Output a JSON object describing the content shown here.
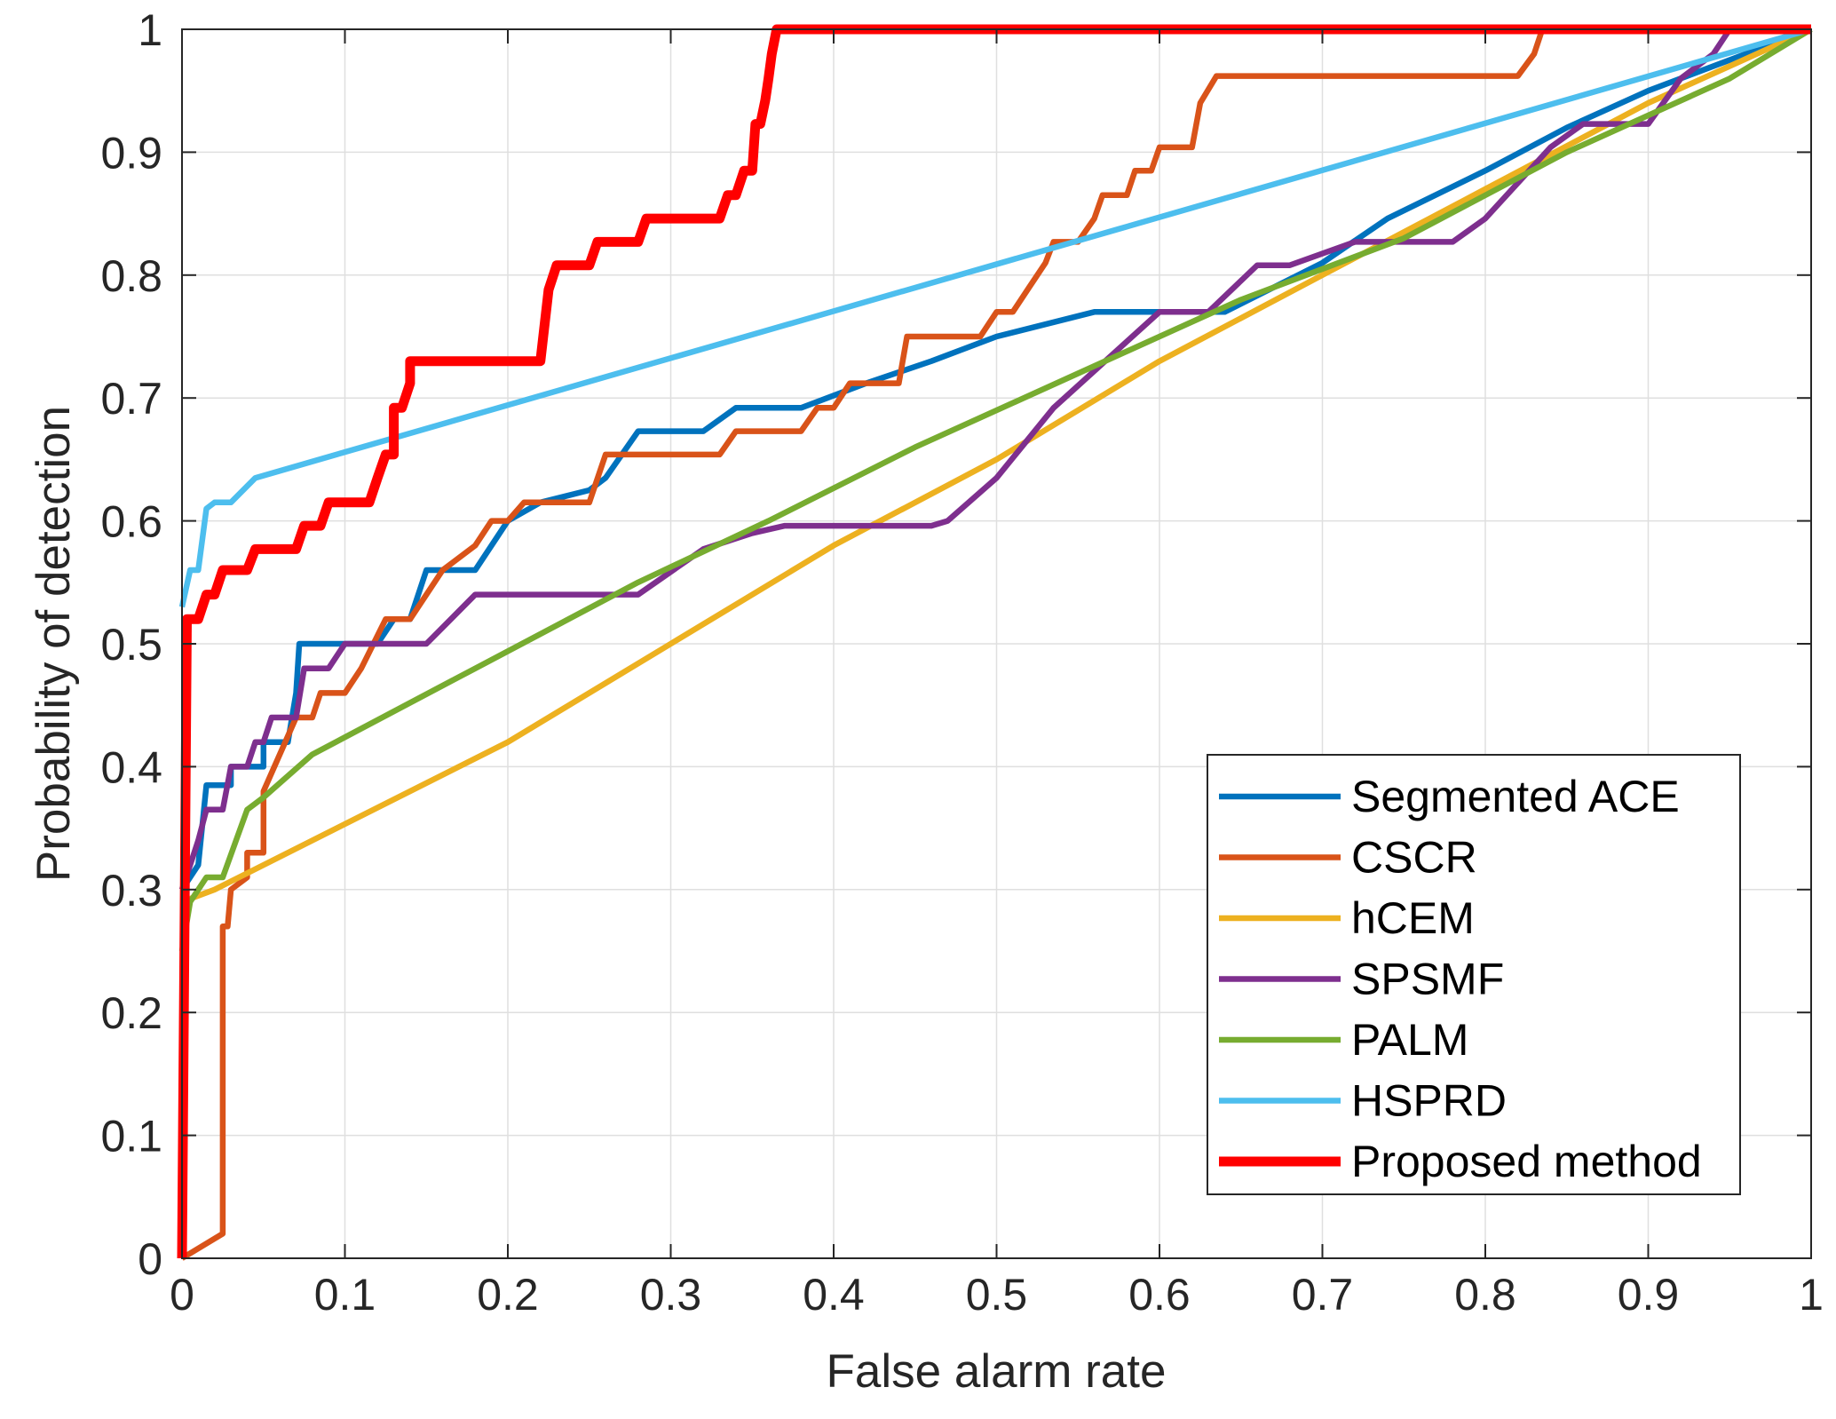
{
  "chart_data": {
    "type": "line",
    "title": "",
    "xlabel": "False alarm rate",
    "ylabel": "Probability of detection",
    "xlim": [
      0,
      1
    ],
    "ylim": [
      0,
      1
    ],
    "xticks": [
      0,
      0.1,
      0.2,
      0.3,
      0.4,
      0.5,
      0.6,
      0.7,
      0.8,
      0.9,
      1
    ],
    "yticks": [
      0,
      0.1,
      0.2,
      0.3,
      0.4,
      0.5,
      0.6,
      0.7,
      0.8,
      0.9,
      1
    ],
    "xtick_labels": [
      "0",
      "0.1",
      "0.2",
      "0.3",
      "0.4",
      "0.5",
      "0.6",
      "0.7",
      "0.8",
      "0.9",
      "1"
    ],
    "ytick_labels": [
      "0",
      "0.1",
      "0.2",
      "0.3",
      "0.4",
      "0.5",
      "0.6",
      "0.7",
      "0.8",
      "0.9",
      "1"
    ],
    "grid": true,
    "legend_position": "bottom-right",
    "series": [
      {
        "name": "Segmented ACE",
        "color": "#0072BD",
        "points": [
          [
            0,
            0.3
          ],
          [
            0.01,
            0.32
          ],
          [
            0.015,
            0.385
          ],
          [
            0.03,
            0.385
          ],
          [
            0.03,
            0.4
          ],
          [
            0.05,
            0.4
          ],
          [
            0.05,
            0.42
          ],
          [
            0.065,
            0.42
          ],
          [
            0.07,
            0.46
          ],
          [
            0.072,
            0.5
          ],
          [
            0.12,
            0.5
          ],
          [
            0.13,
            0.52
          ],
          [
            0.14,
            0.52
          ],
          [
            0.15,
            0.56
          ],
          [
            0.18,
            0.56
          ],
          [
            0.2,
            0.6
          ],
          [
            0.22,
            0.615
          ],
          [
            0.25,
            0.625
          ],
          [
            0.26,
            0.635
          ],
          [
            0.28,
            0.673
          ],
          [
            0.32,
            0.673
          ],
          [
            0.34,
            0.692
          ],
          [
            0.38,
            0.692
          ],
          [
            0.42,
            0.712
          ],
          [
            0.46,
            0.73
          ],
          [
            0.5,
            0.75
          ],
          [
            0.56,
            0.77
          ],
          [
            0.6,
            0.77
          ],
          [
            0.64,
            0.77
          ],
          [
            0.7,
            0.81
          ],
          [
            0.74,
            0.846
          ],
          [
            0.8,
            0.885
          ],
          [
            0.85,
            0.92
          ],
          [
            0.9,
            0.95
          ],
          [
            1,
            1
          ]
        ]
      },
      {
        "name": "CSCR",
        "color": "#D95319",
        "points": [
          [
            0,
            0
          ],
          [
            0.025,
            0.02
          ],
          [
            0.025,
            0.27
          ],
          [
            0.028,
            0.27
          ],
          [
            0.03,
            0.3
          ],
          [
            0.04,
            0.31
          ],
          [
            0.04,
            0.33
          ],
          [
            0.05,
            0.33
          ],
          [
            0.05,
            0.38
          ],
          [
            0.07,
            0.44
          ],
          [
            0.08,
            0.44
          ],
          [
            0.085,
            0.46
          ],
          [
            0.1,
            0.46
          ],
          [
            0.11,
            0.48
          ],
          [
            0.125,
            0.52
          ],
          [
            0.14,
            0.52
          ],
          [
            0.16,
            0.56
          ],
          [
            0.18,
            0.58
          ],
          [
            0.19,
            0.6
          ],
          [
            0.2,
            0.6
          ],
          [
            0.21,
            0.615
          ],
          [
            0.25,
            0.615
          ],
          [
            0.26,
            0.654
          ],
          [
            0.33,
            0.654
          ],
          [
            0.34,
            0.673
          ],
          [
            0.38,
            0.673
          ],
          [
            0.39,
            0.692
          ],
          [
            0.4,
            0.692
          ],
          [
            0.41,
            0.712
          ],
          [
            0.44,
            0.712
          ],
          [
            0.445,
            0.75
          ],
          [
            0.49,
            0.75
          ],
          [
            0.5,
            0.77
          ],
          [
            0.51,
            0.77
          ],
          [
            0.52,
            0.79
          ],
          [
            0.53,
            0.81
          ],
          [
            0.535,
            0.827
          ],
          [
            0.55,
            0.827
          ],
          [
            0.56,
            0.846
          ],
          [
            0.565,
            0.865
          ],
          [
            0.58,
            0.865
          ],
          [
            0.585,
            0.885
          ],
          [
            0.595,
            0.885
          ],
          [
            0.6,
            0.904
          ],
          [
            0.62,
            0.904
          ],
          [
            0.625,
            0.94
          ],
          [
            0.635,
            0.962
          ],
          [
            0.82,
            0.962
          ],
          [
            0.83,
            0.98
          ],
          [
            0.835,
            1
          ],
          [
            1,
            1
          ]
        ]
      },
      {
        "name": "hCEM",
        "color": "#EDB120",
        "points": [
          [
            0,
            0.29
          ],
          [
            0.02,
            0.3
          ],
          [
            0.05,
            0.32
          ],
          [
            0.2,
            0.42
          ],
          [
            0.3,
            0.5
          ],
          [
            0.4,
            0.58
          ],
          [
            0.5,
            0.65
          ],
          [
            0.6,
            0.73
          ],
          [
            0.7,
            0.8
          ],
          [
            0.8,
            0.87
          ],
          [
            0.9,
            0.94
          ],
          [
            1,
            1
          ]
        ]
      },
      {
        "name": "SPSMF",
        "color": "#7E2F8E",
        "points": [
          [
            0,
            0.3
          ],
          [
            0.005,
            0.32
          ],
          [
            0.01,
            0.34
          ],
          [
            0.015,
            0.365
          ],
          [
            0.025,
            0.365
          ],
          [
            0.03,
            0.4
          ],
          [
            0.04,
            0.4
          ],
          [
            0.045,
            0.42
          ],
          [
            0.05,
            0.42
          ],
          [
            0.055,
            0.44
          ],
          [
            0.07,
            0.44
          ],
          [
            0.075,
            0.48
          ],
          [
            0.09,
            0.48
          ],
          [
            0.1,
            0.5
          ],
          [
            0.15,
            0.5
          ],
          [
            0.18,
            0.54
          ],
          [
            0.28,
            0.54
          ],
          [
            0.32,
            0.577
          ],
          [
            0.35,
            0.59
          ],
          [
            0.37,
            0.596
          ],
          [
            0.46,
            0.596
          ],
          [
            0.47,
            0.6
          ],
          [
            0.5,
            0.635
          ],
          [
            0.535,
            0.692
          ],
          [
            0.6,
            0.77
          ],
          [
            0.63,
            0.77
          ],
          [
            0.66,
            0.808
          ],
          [
            0.68,
            0.808
          ],
          [
            0.72,
            0.827
          ],
          [
            0.78,
            0.827
          ],
          [
            0.8,
            0.846
          ],
          [
            0.84,
            0.904
          ],
          [
            0.86,
            0.923
          ],
          [
            0.88,
            0.923
          ],
          [
            0.9,
            0.923
          ],
          [
            0.92,
            0.96
          ],
          [
            0.94,
            0.98
          ],
          [
            0.95,
            1
          ],
          [
            1,
            1
          ]
        ]
      },
      {
        "name": "PALM",
        "color": "#77AC30",
        "points": [
          [
            0,
            0.25
          ],
          [
            0.005,
            0.29
          ],
          [
            0.015,
            0.31
          ],
          [
            0.025,
            0.31
          ],
          [
            0.04,
            0.365
          ],
          [
            0.05,
            0.375
          ],
          [
            0.08,
            0.41
          ],
          [
            0.18,
            0.48
          ],
          [
            0.28,
            0.55
          ],
          [
            0.36,
            0.6
          ],
          [
            0.45,
            0.66
          ],
          [
            0.55,
            0.72
          ],
          [
            0.65,
            0.78
          ],
          [
            0.75,
            0.83
          ],
          [
            0.85,
            0.9
          ],
          [
            0.95,
            0.96
          ],
          [
            1,
            1
          ]
        ]
      },
      {
        "name": "HSPRD",
        "color": "#4DBEEE",
        "points": [
          [
            0,
            0.53
          ],
          [
            0.005,
            0.56
          ],
          [
            0.01,
            0.56
          ],
          [
            0.015,
            0.61
          ],
          [
            0.02,
            0.615
          ],
          [
            0.03,
            0.615
          ],
          [
            0.045,
            0.635
          ],
          [
            1,
            1
          ]
        ]
      },
      {
        "name": "Proposed method",
        "color": "#FF0000",
        "points": [
          [
            0,
            0
          ],
          [
            0.003,
            0.52
          ],
          [
            0.01,
            0.52
          ],
          [
            0.015,
            0.54
          ],
          [
            0.02,
            0.54
          ],
          [
            0.025,
            0.56
          ],
          [
            0.04,
            0.56
          ],
          [
            0.045,
            0.577
          ],
          [
            0.07,
            0.577
          ],
          [
            0.075,
            0.596
          ],
          [
            0.085,
            0.596
          ],
          [
            0.09,
            0.615
          ],
          [
            0.115,
            0.615
          ],
          [
            0.12,
            0.635
          ],
          [
            0.125,
            0.654
          ],
          [
            0.13,
            0.654
          ],
          [
            0.13,
            0.692
          ],
          [
            0.135,
            0.692
          ],
          [
            0.14,
            0.712
          ],
          [
            0.14,
            0.73
          ],
          [
            0.22,
            0.73
          ],
          [
            0.225,
            0.788
          ],
          [
            0.23,
            0.808
          ],
          [
            0.25,
            0.808
          ],
          [
            0.255,
            0.827
          ],
          [
            0.28,
            0.827
          ],
          [
            0.285,
            0.846
          ],
          [
            0.33,
            0.846
          ],
          [
            0.335,
            0.865
          ],
          [
            0.34,
            0.865
          ],
          [
            0.345,
            0.885
          ],
          [
            0.35,
            0.885
          ],
          [
            0.352,
            0.923
          ],
          [
            0.355,
            0.923
          ],
          [
            0.358,
            0.942
          ],
          [
            0.36,
            0.96
          ],
          [
            0.362,
            0.98
          ],
          [
            0.365,
            1
          ],
          [
            1,
            1
          ]
        ]
      }
    ]
  }
}
